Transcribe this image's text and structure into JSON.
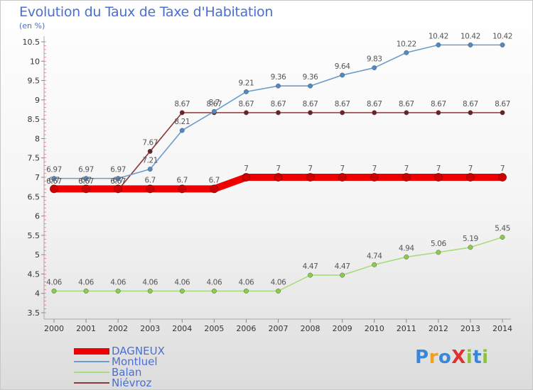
{
  "title": "Evolution du Taux de Taxe d'Habitation",
  "subtitle": "(en %)",
  "chart_data": {
    "type": "line",
    "title": "Evolution du Taux de Taxe d'Habitation",
    "ylabel": "(en %)",
    "xlabel": "",
    "x": [
      "2000",
      "2001",
      "2002",
      "2003",
      "2004",
      "2005",
      "2006",
      "2007",
      "2008",
      "2009",
      "2010",
      "2011",
      "2012",
      "2013",
      "2014"
    ],
    "ylim": [
      3.5,
      10.5
    ],
    "yticks": [
      "3.5",
      "4",
      "4.5",
      "5",
      "5.5",
      "6",
      "6.5",
      "7",
      "7.5",
      "8",
      "8.5",
      "9",
      "9.5",
      "10",
      "10.5"
    ],
    "grid": false,
    "legend_position": "bottom-left",
    "series": [
      {
        "name": "DAGNEUX",
        "color": "#ee0000",
        "marker": "#cc0000",
        "values": [
          6.7,
          6.7,
          6.7,
          6.7,
          6.7,
          6.7,
          7,
          7,
          7,
          7,
          7,
          7,
          7,
          7,
          7
        ],
        "labels": [
          "6.7",
          "6.7",
          "6.7",
          "6.7",
          "6.7",
          "6.7",
          "7",
          "7",
          "7",
          "7",
          "7",
          "7",
          "7",
          "7",
          "7"
        ]
      },
      {
        "name": "Montluel",
        "color": "#6c9ccc",
        "marker": "#4f8ac8",
        "values": [
          6.97,
          6.97,
          6.97,
          7.21,
          8.21,
          8.7,
          9.21,
          9.36,
          9.36,
          9.64,
          9.83,
          10.22,
          10.42,
          10.42,
          10.42
        ],
        "labels": [
          "6.97",
          "6.97",
          "6.97",
          "7.21",
          "8.21",
          "8.7",
          "9.21",
          "9.36",
          "9.36",
          "9.64",
          "9.83",
          "10.22",
          "10.42",
          "10.42",
          "10.42"
        ]
      },
      {
        "name": "Balan",
        "color": "#a8dc7c",
        "marker": "#8ccc4c",
        "values": [
          4.06,
          4.06,
          4.06,
          4.06,
          4.06,
          4.06,
          4.06,
          4.06,
          4.47,
          4.47,
          4.74,
          4.94,
          5.06,
          5.19,
          5.45
        ],
        "labels": [
          "4.06",
          "4.06",
          "4.06",
          "4.06",
          "4.06",
          "4.06",
          "4.06",
          "4.06",
          "4.47",
          "4.47",
          "4.74",
          "4.94",
          "5.06",
          "5.19",
          "5.45"
        ]
      },
      {
        "name": "Niévroz",
        "color": "#8a3a3a",
        "marker": "#6a2222",
        "values": [
          6.67,
          6.67,
          6.67,
          7.67,
          8.67,
          8.67,
          8.67,
          8.67,
          8.67,
          8.67,
          8.67,
          8.67,
          8.67,
          8.67,
          8.67
        ],
        "labels": [
          "6.67",
          "6.67",
          "6.67",
          "7.67",
          "8.67",
          "8.67",
          "8.67",
          "8.67",
          "8.67",
          "8.67",
          "8.67",
          "8.67",
          "8.67",
          "8.67",
          "8.67"
        ]
      }
    ]
  },
  "legend": [
    {
      "label": "DAGNEUX",
      "color": "#ee0000"
    },
    {
      "label": "Montluel",
      "color": "#6c9ccc"
    },
    {
      "label": "Balan",
      "color": "#a8dc7c"
    },
    {
      "label": "Niévroz",
      "color": "#8a3a3a"
    }
  ],
  "logo": {
    "text": "ProXiti",
    "colors": [
      "#3a86d8",
      "#f0a020",
      "#3a86d8",
      "#e03030",
      "#8cc040",
      "#3a86d8",
      "#8cc040"
    ]
  }
}
